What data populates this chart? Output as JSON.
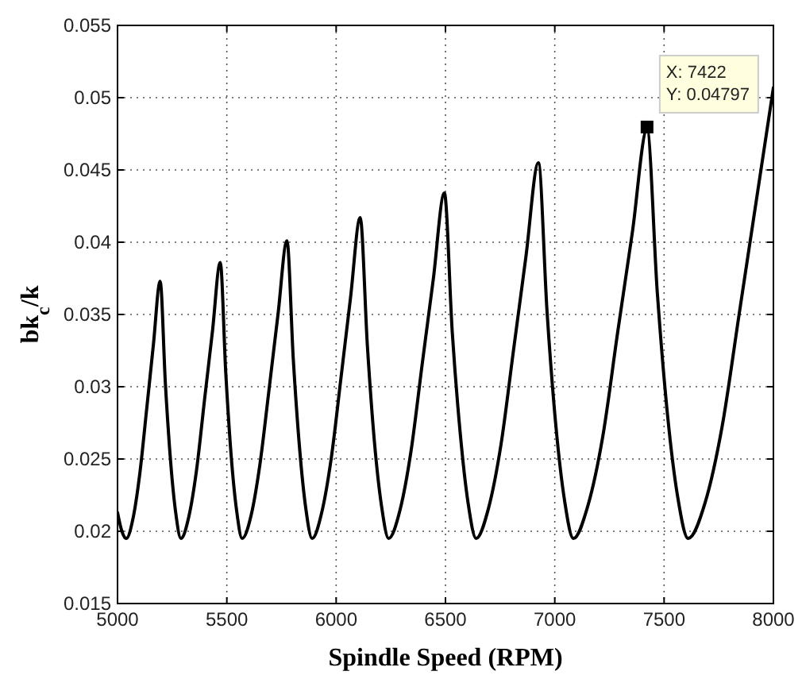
{
  "chart_data": {
    "type": "line",
    "xlabel": "Spindle Speed (RPM)",
    "ylabel": "bk$_{c}$/k",
    "xlim": [
      5000,
      8000
    ],
    "xticks": [
      5000,
      5500,
      6000,
      6500,
      7000,
      7500,
      8000
    ],
    "ylim": [
      0.015,
      0.055
    ],
    "yticks": [
      0.015,
      0.02,
      0.025,
      0.03,
      0.035,
      0.04,
      0.045,
      0.05,
      0.055
    ],
    "grid": true,
    "line_style": "solid",
    "marker": "none",
    "series": [
      {
        "color": "#000000",
        "x": [
          5000,
          5020,
          5040,
          5071,
          5102,
          5133,
          5164,
          5195,
          5219,
          5243,
          5266,
          5290,
          5326,
          5362,
          5398,
          5434,
          5470,
          5495,
          5520,
          5545,
          5570,
          5611,
          5652,
          5693,
          5734,
          5775,
          5804,
          5833,
          5861,
          5890,
          5934,
          5978,
          6022,
          6066,
          6110,
          6143,
          6175,
          6208,
          6240,
          6291,
          6342,
          6393,
          6444,
          6495,
          6531,
          6568,
          6604,
          6640,
          6697,
          6754,
          6811,
          6868,
          6925,
          6965,
          7005,
          7045,
          7085,
          7152,
          7220,
          7287,
          7355,
          7422,
          7469,
          7516,
          7563,
          7610,
          7688,
          7766,
          7844,
          7922,
          8000
        ],
        "values": [
          0.0213,
          0.02,
          0.0195,
          0.0209,
          0.024,
          0.0284,
          0.0329,
          0.0373,
          0.0302,
          0.0248,
          0.0213,
          0.0195,
          0.021,
          0.0243,
          0.0291,
          0.0338,
          0.0386,
          0.031,
          0.0252,
          0.0214,
          0.0195,
          0.0211,
          0.0247,
          0.0298,
          0.035,
          0.0401,
          0.0319,
          0.0257,
          0.0216,
          0.0195,
          0.0213,
          0.0251,
          0.0306,
          0.0362,
          0.0417,
          0.0328,
          0.0262,
          0.0217,
          0.0195,
          0.0214,
          0.0255,
          0.0315,
          0.0374,
          0.0434,
          0.0338,
          0.0267,
          0.0219,
          0.0195,
          0.0216,
          0.026,
          0.0325,
          0.039,
          0.0455,
          0.0351,
          0.0273,
          0.0221,
          0.0195,
          0.0218,
          0.0266,
          0.0337,
          0.0407,
          0.0478,
          0.0365,
          0.028,
          0.0223,
          0.0195,
          0.022,
          0.0273,
          0.0351,
          0.0429,
          0.0507
        ]
      },
      {
        "type": "scatter",
        "color": "#000000",
        "marker": "square",
        "x": [
          7422
        ],
        "values": [
          0.04797
        ]
      }
    ],
    "annotations": [
      "X: 7422\nY: 0.04797"
    ]
  }
}
